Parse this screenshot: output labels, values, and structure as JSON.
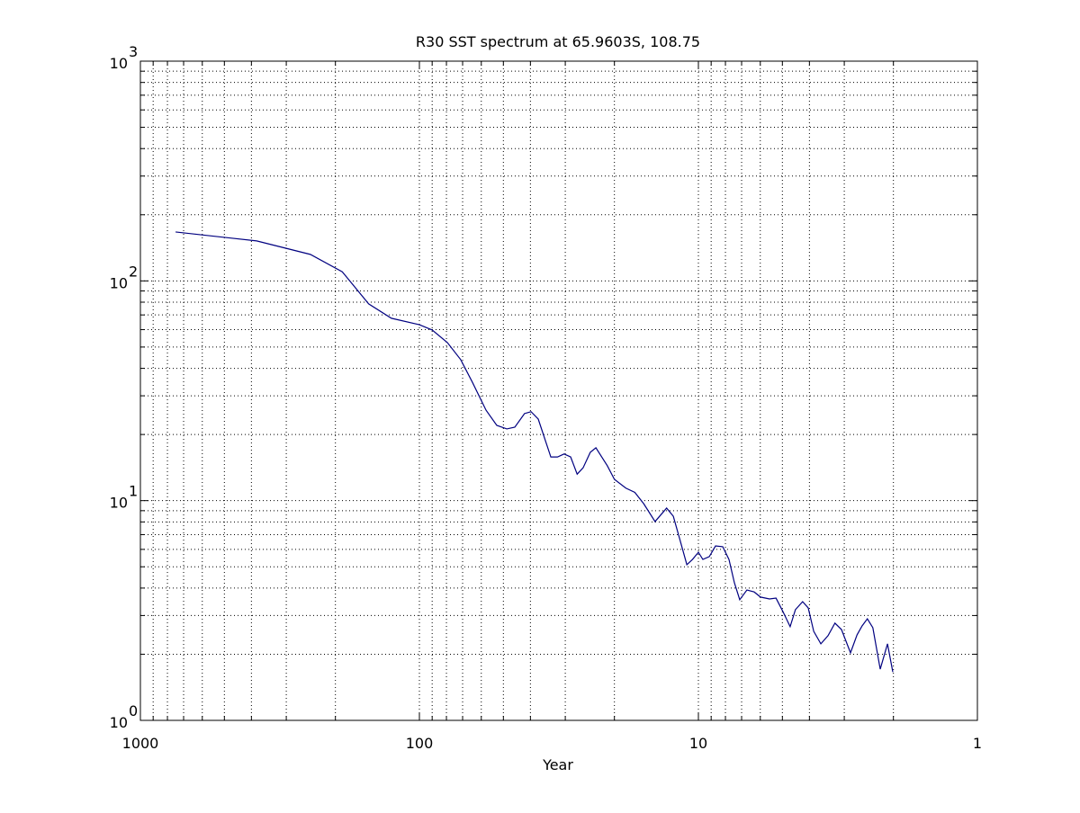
{
  "chart_data": {
    "type": "line",
    "title": "R30 SST spectrum at 65.9603S, 108.75",
    "x_label": "Year",
    "x": [
      748,
      383,
      246,
      189,
      152,
      126,
      100,
      90,
      79.4,
      71.1,
      64.6,
      57.7,
      52.8,
      48.6,
      45.5,
      42.0,
      39.8,
      37.5,
      33.8,
      32.0,
      30.3,
      28.7,
      27.2,
      25.9,
      24.4,
      23.3,
      21.2,
      20,
      18.2,
      16.9,
      15.7,
      14.3,
      13.6,
      13.0,
      12.3,
      11.7,
      11.0,
      10.5,
      10,
      9.64,
      9.14,
      8.68,
      8.18,
      7.77,
      7.43,
      7.11,
      6.7,
      6.31,
      5.99,
      5.56,
      5.27,
      4.98,
      4.69,
      4.49,
      4.23,
      4.04,
      3.86,
      3.64,
      3.43,
      3.24,
      3.07,
      2.85,
      2.7,
      2.59,
      2.48,
      2.37,
      2.23,
      2.1,
      2.01
    ],
    "series": [
      {
        "color": "#000080",
        "values": [
          167,
          152,
          132,
          110,
          78.6,
          67.6,
          63.2,
          59.8,
          52.4,
          43.8,
          34.6,
          25.8,
          22.0,
          21.2,
          21.6,
          24.9,
          25.4,
          23.5,
          15.8,
          15.8,
          16.3,
          15.8,
          13.2,
          14.1,
          16.6,
          17.4,
          14.4,
          12.5,
          11.4,
          10.9,
          9.68,
          8.03,
          8.65,
          9.25,
          8.49,
          6.78,
          5.11,
          5.4,
          5.82,
          5.4,
          5.56,
          6.22,
          6.17,
          5.4,
          4.23,
          3.54,
          3.92,
          3.84,
          3.64,
          3.57,
          3.6,
          3.13,
          2.67,
          3.19,
          3.47,
          3.25,
          2.54,
          2.23,
          2.43,
          2.77,
          2.59,
          2.03,
          2.45,
          2.69,
          2.9,
          2.64,
          1.71,
          2.23,
          1.66
        ]
      }
    ],
    "xlim": [
      1000,
      1
    ],
    "xticks": [
      1000,
      100,
      10,
      1
    ],
    "x_log": true,
    "ylim": [
      1,
      1000
    ],
    "y_log": true,
    "yticks": [
      {
        "value": 1,
        "label": "10",
        "exponent": "0"
      },
      {
        "value": 10,
        "label": "10",
        "exponent": "1"
      },
      {
        "value": 100,
        "label": "10",
        "exponent": "2"
      },
      {
        "value": 1000,
        "label": "10",
        "exponent": "3"
      }
    ],
    "grid": true
  }
}
